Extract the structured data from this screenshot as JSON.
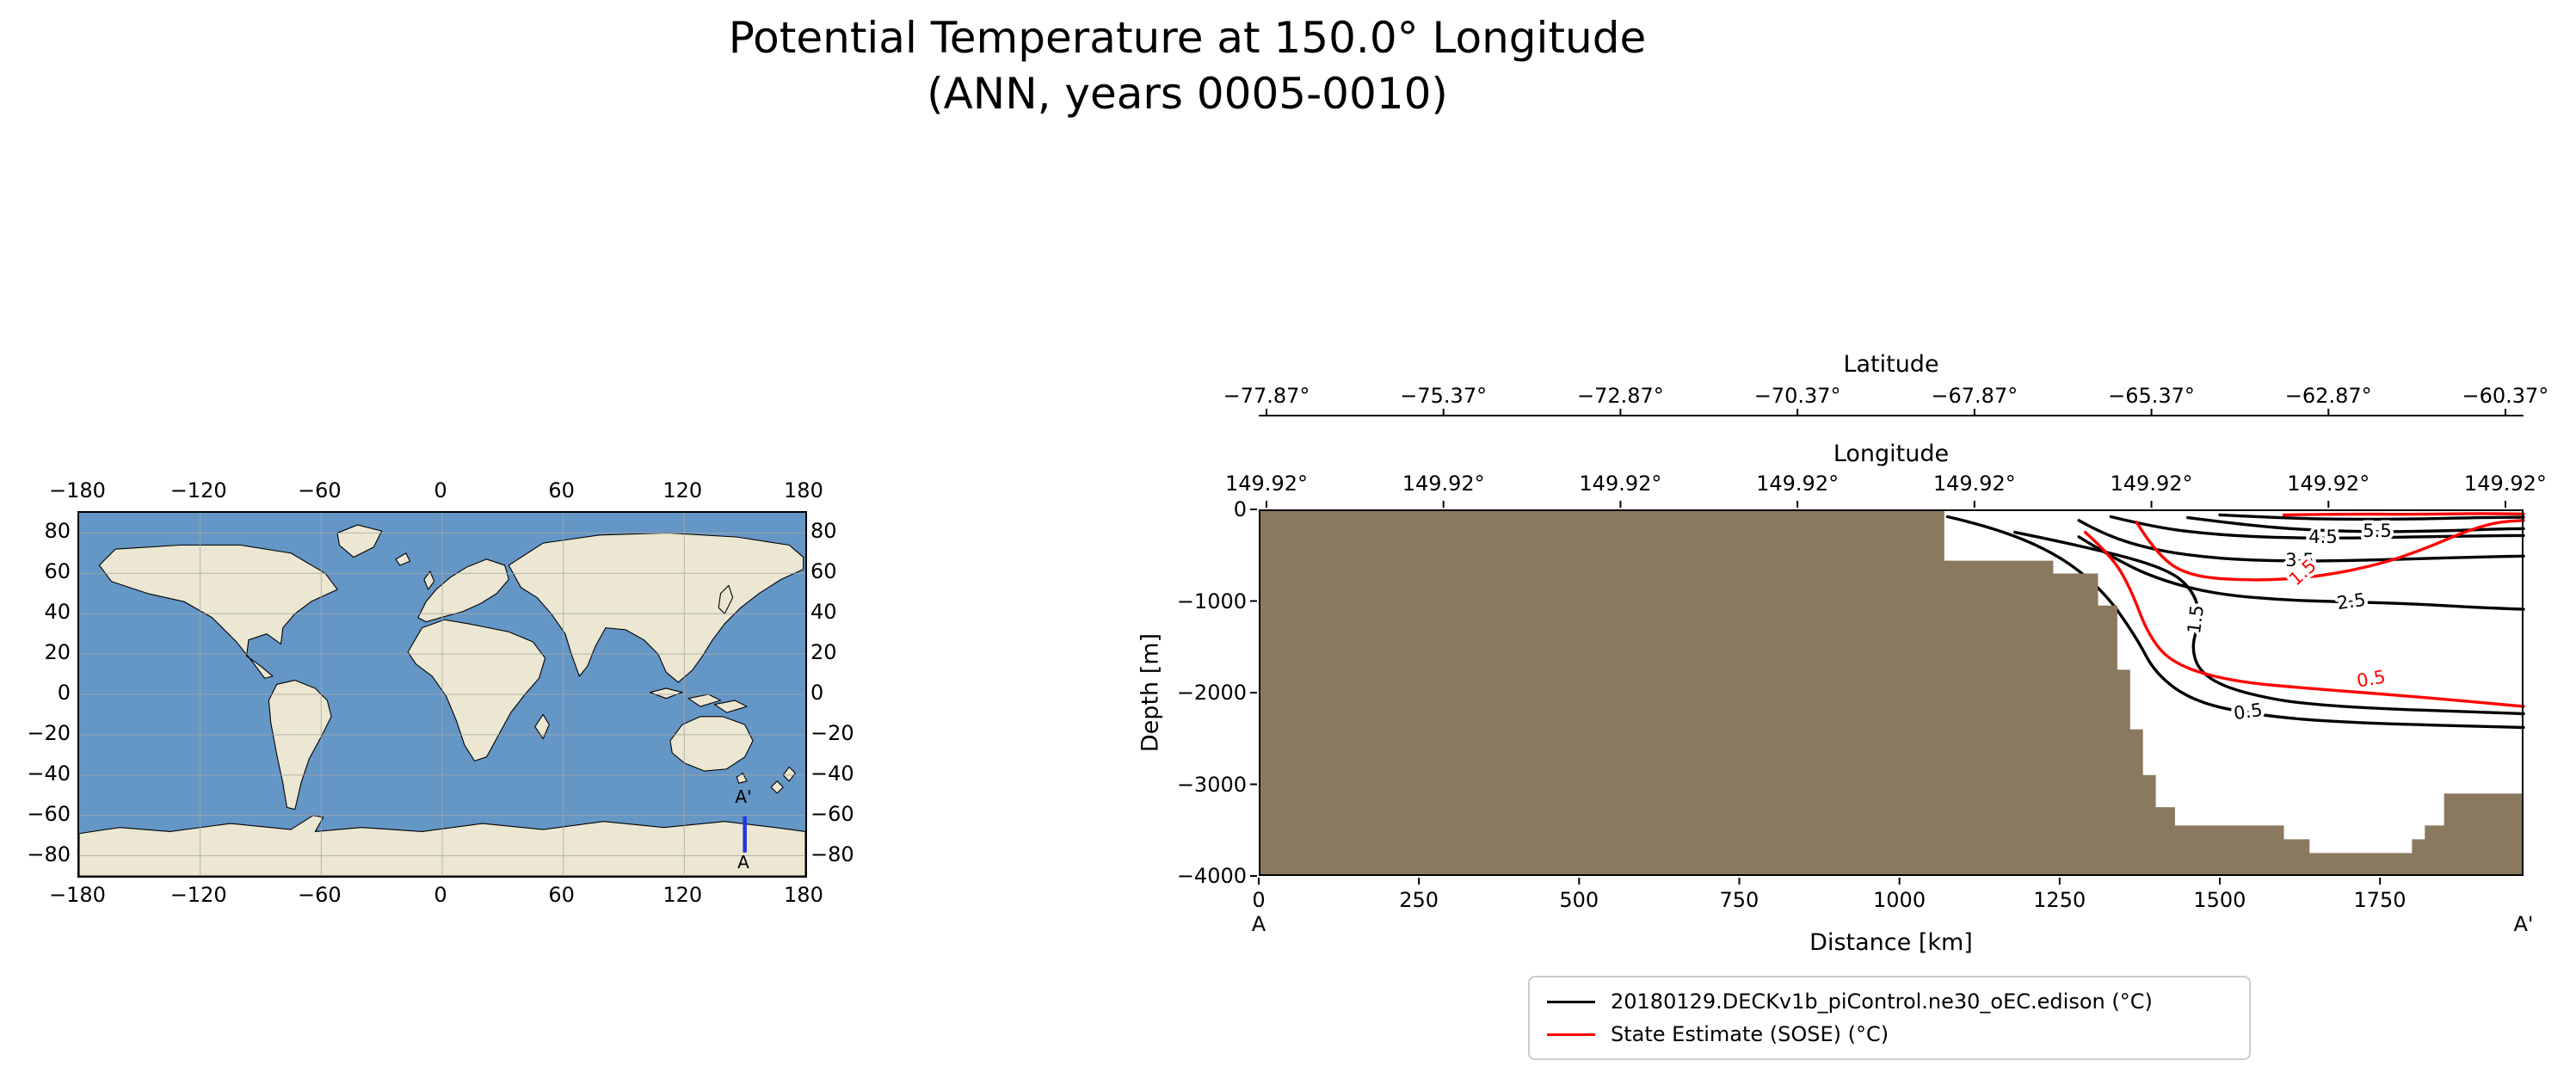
{
  "title": {
    "line1": "Potential Temperature at 150.0° Longitude",
    "line2": "(ANN, years 0005-0010)"
  },
  "map": {
    "x_ticks": [
      "−180",
      "−120",
      "−60",
      "0",
      "60",
      "120",
      "180"
    ],
    "y_ticks": [
      "80",
      "60",
      "40",
      "20",
      "0",
      "−20",
      "−40",
      "−60",
      "−80"
    ],
    "transect_start_label": "A",
    "transect_end_label": "A'",
    "ocean_color": "#6496c6",
    "land_color": "#ece7d2",
    "transect_color": "#2038d8"
  },
  "section": {
    "latitude_axis": {
      "label": "Latitude",
      "ticks": [
        "−77.87°",
        "−75.37°",
        "−72.87°",
        "−70.37°",
        "−67.87°",
        "−65.37°",
        "−62.87°",
        "−60.37°"
      ]
    },
    "longitude_axis": {
      "label": "Longitude",
      "ticks": [
        "149.92°",
        "149.92°",
        "149.92°",
        "149.92°",
        "149.92°",
        "149.92°",
        "149.92°",
        "149.92°"
      ]
    },
    "depth_axis": {
      "label": "Depth [m]",
      "ticks": [
        "0",
        "−1000",
        "−2000",
        "−3000",
        "−4000"
      ]
    },
    "distance_axis": {
      "label": "Distance [km]",
      "ticks": [
        "0",
        "250",
        "500",
        "750",
        "1000",
        "1250",
        "1500",
        "1750"
      ],
      "start_marker": "A",
      "end_marker": "A'"
    },
    "contour_label_values": {
      "black": [
        "5.5",
        "4.5",
        "3.5",
        "2.5",
        "1.5",
        "0.5"
      ],
      "red": [
        "1.5",
        "0.5"
      ]
    }
  },
  "legend": {
    "entries": [
      {
        "label": "20180129.DECKv1b_piControl.ne30_oEC.edison (°C)",
        "color": "#000000"
      },
      {
        "label": "State Estimate (SOSE) (°C)",
        "color": "#ff0000"
      }
    ]
  },
  "chart_data": [
    {
      "type": "map",
      "role": "transect-location-map",
      "projection": "plate-carree",
      "xlim": [
        -180,
        180
      ],
      "ylim": [
        -90,
        90
      ],
      "x_ticks": [
        -180,
        -120,
        -60,
        0,
        60,
        120,
        180
      ],
      "y_ticks": [
        80,
        60,
        40,
        20,
        0,
        -20,
        -40,
        -60,
        -80
      ],
      "grid": true,
      "transect": {
        "longitude": 150.0,
        "latitude_start": -60.0,
        "latitude_end": -78.0,
        "start_label": "A",
        "end_label": "A'"
      }
    },
    {
      "type": "contour",
      "role": "depth-section",
      "title": "Potential Temperature at 150.0° Longitude (ANN, years 0005-0010)",
      "xlabel": "Distance [km]",
      "ylabel": "Depth [m]",
      "xlim": [
        0,
        1974
      ],
      "ylim": [
        -4000,
        0
      ],
      "x_ticks": [
        0,
        250,
        500,
        750,
        1000,
        1250,
        1500,
        1750
      ],
      "y_ticks": [
        0,
        -1000,
        -2000,
        -3000,
        -4000
      ],
      "top_axes": [
        {
          "label": "Latitude",
          "ticks_deg": [
            -77.87,
            -75.37,
            -72.87,
            -70.37,
            -67.87,
            -65.37,
            -62.87,
            -60.37
          ]
        },
        {
          "label": "Longitude",
          "ticks_deg": [
            149.92,
            149.92,
            149.92,
            149.92,
            149.92,
            149.92,
            149.92,
            149.92
          ]
        }
      ],
      "series": [
        {
          "name": "20180129.DECKv1b_piControl.ne30_oEC.edison (°C)",
          "id": "model",
          "color": "#000000",
          "labeled_levels": [
            0.5,
            1.5,
            2.5,
            3.5,
            4.5,
            5.5
          ]
        },
        {
          "name": "State Estimate (SOSE) (°C)",
          "id": "sose",
          "color": "#ff0000",
          "labeled_levels": [
            0.5,
            1.5
          ]
        }
      ],
      "bathymetry": {
        "color": "#8a795e",
        "profile_km_m": [
          [
            0,
            0
          ],
          [
            1070,
            0
          ],
          [
            1070,
            -560
          ],
          [
            1240,
            -560
          ],
          [
            1240,
            -700
          ],
          [
            1310,
            -700
          ],
          [
            1310,
            -1050
          ],
          [
            1340,
            -1050
          ],
          [
            1340,
            -1750
          ],
          [
            1360,
            -1750
          ],
          [
            1360,
            -2400
          ],
          [
            1380,
            -2400
          ],
          [
            1380,
            -2900
          ],
          [
            1400,
            -2900
          ],
          [
            1400,
            -3250
          ],
          [
            1430,
            -3250
          ],
          [
            1430,
            -3450
          ],
          [
            1600,
            -3450
          ],
          [
            1600,
            -3600
          ],
          [
            1640,
            -3600
          ],
          [
            1640,
            -3750
          ],
          [
            1800,
            -3750
          ],
          [
            1800,
            -3600
          ],
          [
            1820,
            -3600
          ],
          [
            1820,
            -3450
          ],
          [
            1850,
            -3450
          ],
          [
            1850,
            -3100
          ],
          [
            1974,
            -3100
          ]
        ]
      },
      "contours": [
        {
          "series": "model",
          "color": "#000000",
          "level": 0.5,
          "points_km_m": [
            [
              1075,
              -80
            ],
            [
              1150,
              -200
            ],
            [
              1250,
              -500
            ],
            [
              1320,
              -900
            ],
            [
              1370,
              -1400
            ],
            [
              1400,
              -1800
            ],
            [
              1460,
              -2100
            ],
            [
              1560,
              -2250
            ],
            [
              1700,
              -2330
            ],
            [
              1974,
              -2380
            ]
          ]
        },
        {
          "series": "model",
          "color": "#000000",
          "level": 1.5,
          "points_km_m": [
            [
              1180,
              -250
            ],
            [
              1300,
              -420
            ],
            [
              1420,
              -650
            ],
            [
              1460,
              -900
            ],
            [
              1470,
              -1200
            ],
            [
              1455,
              -1500
            ],
            [
              1470,
              -1800
            ],
            [
              1530,
              -2000
            ],
            [
              1650,
              -2150
            ],
            [
              1974,
              -2230
            ]
          ]
        },
        {
          "series": "model",
          "color": "#000000",
          "level": 2.5,
          "points_km_m": [
            [
              1280,
              -300
            ],
            [
              1350,
              -600
            ],
            [
              1420,
              -800
            ],
            [
              1500,
              -930
            ],
            [
              1600,
              -990
            ],
            [
              1700,
              -1010
            ],
            [
              1800,
              -1030
            ],
            [
              1900,
              -1070
            ],
            [
              1974,
              -1090
            ]
          ]
        },
        {
          "series": "model",
          "color": "#000000",
          "level": 3.5,
          "points_km_m": [
            [
              1280,
              -120
            ],
            [
              1320,
              -280
            ],
            [
              1400,
              -450
            ],
            [
              1500,
              -540
            ],
            [
              1600,
              -565
            ],
            [
              1700,
              -560
            ],
            [
              1800,
              -540
            ],
            [
              1900,
              -520
            ],
            [
              1974,
              -510
            ]
          ]
        },
        {
          "series": "model",
          "color": "#000000",
          "level": 4.5,
          "points_km_m": [
            [
              1330,
              -80
            ],
            [
              1400,
              -200
            ],
            [
              1500,
              -280
            ],
            [
              1600,
              -310
            ],
            [
              1700,
              -315
            ],
            [
              1800,
              -300
            ],
            [
              1900,
              -290
            ],
            [
              1974,
              -285
            ]
          ]
        },
        {
          "series": "model",
          "color": "#000000",
          "level": 5.5,
          "points_km_m": [
            [
              1450,
              -90
            ],
            [
              1550,
              -180
            ],
            [
              1650,
              -230
            ],
            [
              1750,
              -245
            ],
            [
              1850,
              -235
            ],
            [
              1930,
              -215
            ],
            [
              1974,
              -210
            ]
          ]
        },
        {
          "series": "model",
          "color": "#000000",
          "level": "",
          "points_km_m": [
            [
              1500,
              -60
            ],
            [
              1600,
              -95
            ],
            [
              1700,
              -110
            ],
            [
              1800,
              -105
            ],
            [
              1900,
              -90
            ],
            [
              1974,
              -85
            ]
          ]
        },
        {
          "series": "sose",
          "color": "#ff0000",
          "level": 1.5,
          "points_km_m": [
            [
              1370,
              -140
            ],
            [
              1400,
              -480
            ],
            [
              1450,
              -730
            ],
            [
              1550,
              -780
            ],
            [
              1650,
              -740
            ],
            [
              1750,
              -600
            ],
            [
              1820,
              -430
            ],
            [
              1880,
              -250
            ],
            [
              1930,
              -140
            ],
            [
              1974,
              -120
            ]
          ]
        },
        {
          "series": "sose",
          "color": "#ff0000",
          "level": 0.5,
          "points_km_m": [
            [
              1290,
              -250
            ],
            [
              1330,
              -500
            ],
            [
              1360,
              -850
            ],
            [
              1390,
              -1400
            ],
            [
              1430,
              -1700
            ],
            [
              1520,
              -1880
            ],
            [
              1650,
              -1960
            ],
            [
              1800,
              -2040
            ],
            [
              1974,
              -2150
            ]
          ]
        },
        {
          "series": "sose",
          "color": "#ff0000",
          "level": "",
          "points_km_m": [
            [
              1600,
              -60
            ],
            [
              1700,
              -50
            ],
            [
              1800,
              -55
            ],
            [
              1900,
              -45
            ],
            [
              1974,
              -50
            ]
          ]
        }
      ],
      "legend_position": "lower center"
    }
  ]
}
